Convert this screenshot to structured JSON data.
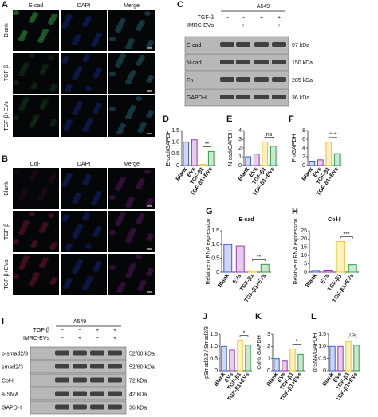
{
  "image_panels": [
    {
      "panel": "A",
      "columns": [
        "E-cad",
        "DAPI",
        "Merge"
      ],
      "rows": [
        "Blank",
        "TGF-β",
        "TGF-β+EVs"
      ]
    },
    {
      "panel": "B",
      "columns": [
        "Col-I",
        "DAPI",
        "Merge"
      ],
      "rows": [
        "Blank",
        "TGF-β",
        "TGF-β+EVs"
      ]
    }
  ],
  "blots": [
    {
      "panel": "C",
      "cell_line": "A549",
      "conditions": [
        {
          "label": "TGF-β",
          "signs": [
            "−",
            "−",
            "+",
            "+"
          ]
        },
        {
          "label": "IMRC-EVs",
          "signs": [
            "−",
            "+",
            "−",
            "+"
          ]
        }
      ],
      "bands": [
        {
          "protein": "E-cad",
          "size": "97 kDa"
        },
        {
          "protein": "N-cad",
          "size": "150 kDa"
        },
        {
          "protein": "Fn",
          "size": "285 kDa"
        },
        {
          "protein": "GAPDH",
          "size": "36 kDa"
        }
      ]
    },
    {
      "panel": "I",
      "cell_line": "A549",
      "conditions": [
        {
          "label": "TGF-β",
          "signs": [
            "−",
            "−",
            "+",
            "+"
          ]
        },
        {
          "label": "IMRC-EVs",
          "signs": [
            "−",
            "+",
            "−",
            "+"
          ]
        }
      ],
      "bands": [
        {
          "protein": "p-smad2/3",
          "size": "52/60 kDa"
        },
        {
          "protein": "smad2/3",
          "size": "52/60 kDa"
        },
        {
          "protein": "Col-I",
          "size": "72 kDa"
        },
        {
          "protein": "a-SMA",
          "size": "42 kDa"
        },
        {
          "protein": "GAPDH",
          "size": "36 kDa"
        }
      ]
    }
  ],
  "chart_data": [
    {
      "type": "bar",
      "panel": "D",
      "ylabel": "E-cad/GAPDH",
      "categories": [
        "Blank",
        "EVs",
        "TGF-β1",
        "TGF-β1+EVs"
      ],
      "values": [
        1.0,
        1.1,
        0.05,
        0.6
      ],
      "colors": [
        "#3b5bdb",
        "#9c36b5",
        "#f5c518",
        "#2f9e44"
      ],
      "ylim": [
        0,
        1.5
      ],
      "yticks": [
        0,
        0.5,
        {
          "value": 1,
          "label": "1.0"
        },
        1.5
      ],
      "significance": "**"
    },
    {
      "type": "bar",
      "panel": "E",
      "ylabel": "N-cad/GAPDH",
      "categories": [
        "Blank",
        "EVs",
        "TGF-β1",
        "TGF-β1+EVs"
      ],
      "values": [
        1.0,
        1.3,
        2.7,
        2.2
      ],
      "colors": [
        "#3b5bdb",
        "#9c36b5",
        "#f5c518",
        "#2f9e44"
      ],
      "ylim": [
        0,
        4
      ],
      "yticks": [
        0,
        1,
        2,
        3,
        4
      ],
      "significance": "ns"
    },
    {
      "type": "bar",
      "panel": "F",
      "ylabel": "Fn/GAPDH",
      "categories": [
        "Blank",
        "EVs",
        "TGF-β1",
        "TGF-β1+EVs"
      ],
      "values": [
        1.0,
        1.3,
        5.3,
        2.7
      ],
      "colors": [
        "#3b5bdb",
        "#9c36b5",
        "#f5c518",
        "#2f9e44"
      ],
      "ylim": [
        0,
        8
      ],
      "yticks": [
        0,
        2,
        4,
        6,
        8
      ],
      "significance": "***"
    },
    {
      "type": "bar",
      "panel": "G",
      "title": "E-cad",
      "ylabel": "Relative mRNA expression",
      "categories": [
        "Blank",
        "EVs",
        "TGF-β1",
        "TGF-β1+EVs"
      ],
      "values": [
        1.0,
        0.95,
        0.05,
        0.28
      ],
      "colors": [
        "#3b5bdb",
        "#9c36b5",
        "#f5c518",
        "#2f9e44"
      ],
      "ylim": [
        0,
        1.5
      ],
      "yticks": [
        0,
        0.5,
        {
          "value": 1,
          "label": "1.0"
        },
        1.5
      ],
      "significance": "**"
    },
    {
      "type": "bar",
      "panel": "H",
      "title": "Col-Ⅰ",
      "ylabel": "Relative mRNA expression",
      "categories": [
        "Blank",
        "EVs",
        "TGF-β1",
        "TGF-β1+EVs"
      ],
      "values": [
        1.0,
        1.2,
        18.5,
        4.5
      ],
      "colors": [
        "#3b5bdb",
        "#9c36b5",
        "#f5c518",
        "#2f9e44"
      ],
      "ylim": [
        0,
        25
      ],
      "yticks": [
        0,
        5,
        10,
        15,
        20,
        25
      ],
      "significance": "***"
    },
    {
      "type": "bar",
      "panel": "J",
      "ylabel": "pSmad2/3 / Smad2/3",
      "categories": [
        "Blank",
        "EVs",
        "TGF-β1",
        "TGF-β1+EVs"
      ],
      "values": [
        1.0,
        0.85,
        1.25,
        1.05
      ],
      "colors": [
        "#3b5bdb",
        "#9c36b5",
        "#f5c518",
        "#2f9e44"
      ],
      "ylim": [
        0,
        1.5
      ],
      "yticks": [
        0,
        0.5,
        {
          "value": 1,
          "label": "1.0"
        },
        1.5
      ],
      "significance": "*"
    },
    {
      "type": "bar",
      "panel": "K",
      "ylabel": "Col-I/ GAPDH",
      "categories": [
        "Blank",
        "EVs",
        "TGF-β1",
        "TGF-β1+EVs"
      ],
      "values": [
        1.0,
        0.8,
        1.8,
        1.35
      ],
      "colors": [
        "#3b5bdb",
        "#9c36b5",
        "#f5c518",
        "#2f9e44"
      ],
      "ylim": [
        0,
        3
      ],
      "yticks": [
        0,
        1,
        2,
        3
      ],
      "significance": "*"
    },
    {
      "type": "bar",
      "panel": "L",
      "ylabel": "α-SMA/GAPDH",
      "categories": [
        "Blank",
        "EVs",
        "TGF-β1",
        "TGF-β1+EVs"
      ],
      "values": [
        1.0,
        1.0,
        1.2,
        1.05
      ],
      "colors": [
        "#3b5bdb",
        "#9c36b5",
        "#f5c518",
        "#2f9e44"
      ],
      "ylim": [
        0,
        1.5
      ],
      "yticks": [
        0,
        0.5,
        {
          "value": 1,
          "label": "1.0"
        },
        1.5
      ],
      "significance": "ns"
    }
  ]
}
